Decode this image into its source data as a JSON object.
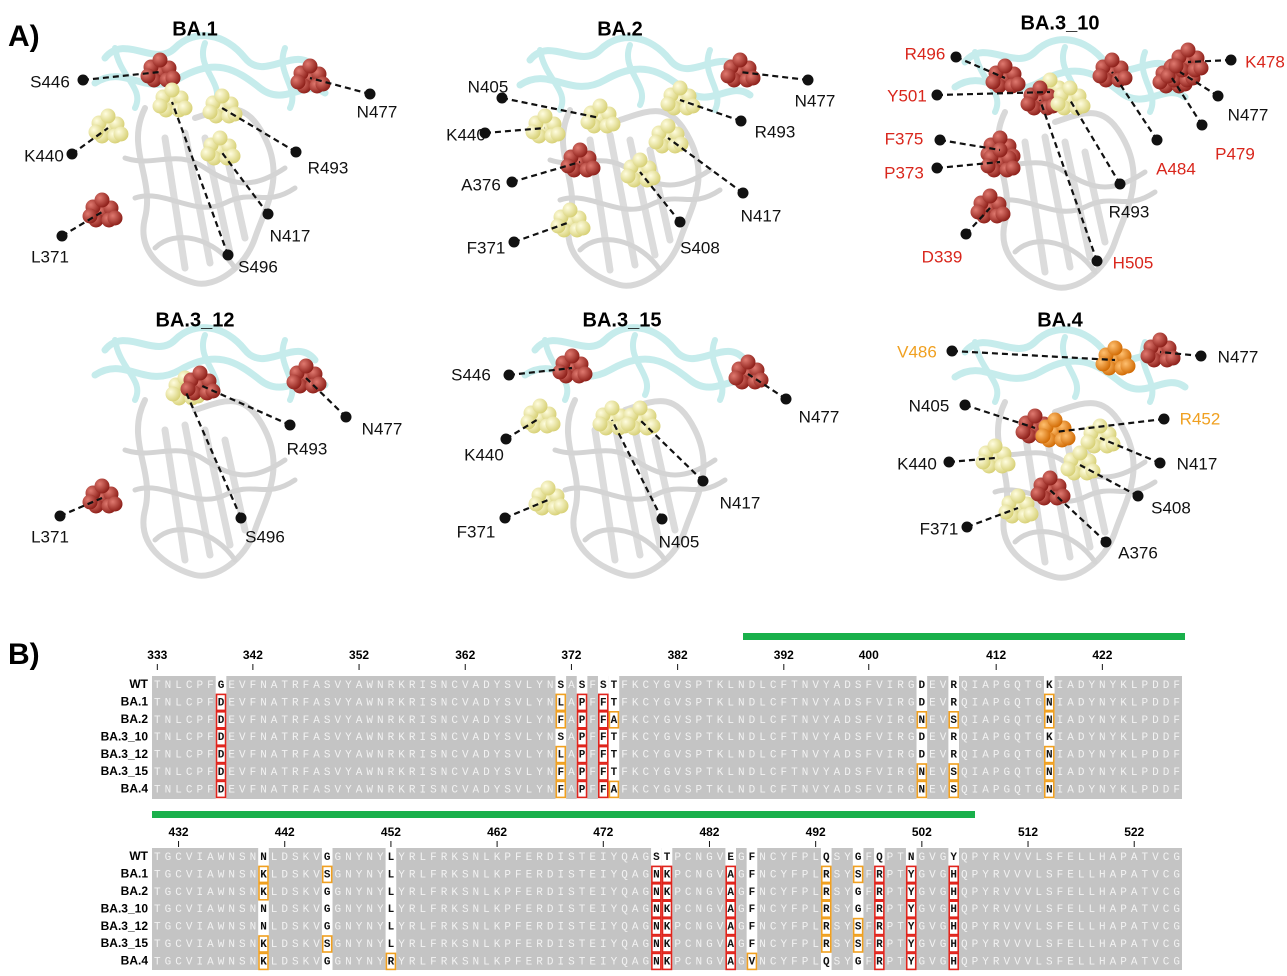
{
  "panel_labels": [
    "A)",
    "B)"
  ],
  "structures": [
    {
      "title": "BA.1",
      "labels": [
        {
          "text": "S446",
          "color": "#111111"
        },
        {
          "text": "K440",
          "color": "#111111"
        },
        {
          "text": "L371",
          "color": "#111111"
        },
        {
          "text": "S496",
          "color": "#111111"
        },
        {
          "text": "N417",
          "color": "#111111"
        },
        {
          "text": "R493",
          "color": "#111111"
        },
        {
          "text": "N477",
          "color": "#111111"
        }
      ]
    },
    {
      "title": "BA.2",
      "labels": [
        {
          "text": "N405",
          "color": "#111111"
        },
        {
          "text": "K440",
          "color": "#111111"
        },
        {
          "text": "A376",
          "color": "#111111"
        },
        {
          "text": "F371",
          "color": "#111111"
        },
        {
          "text": "S408",
          "color": "#111111"
        },
        {
          "text": "N417",
          "color": "#111111"
        },
        {
          "text": "R493",
          "color": "#111111"
        },
        {
          "text": "N477",
          "color": "#111111"
        }
      ]
    },
    {
      "title": "BA.3_10",
      "labels": [
        {
          "text": "R496",
          "color": "#d9261c"
        },
        {
          "text": "Y501",
          "color": "#d9261c"
        },
        {
          "text": "F375",
          "color": "#d9261c"
        },
        {
          "text": "P373",
          "color": "#d9261c"
        },
        {
          "text": "D339",
          "color": "#d9261c"
        },
        {
          "text": "H505",
          "color": "#d9261c"
        },
        {
          "text": "R493",
          "color": "#111111"
        },
        {
          "text": "A484",
          "color": "#d9261c"
        },
        {
          "text": "P479",
          "color": "#d9261c"
        },
        {
          "text": "N477",
          "color": "#111111"
        },
        {
          "text": "K478",
          "color": "#d9261c"
        }
      ]
    },
    {
      "title": "BA.3_12",
      "labels": [
        {
          "text": "L371",
          "color": "#111111"
        },
        {
          "text": "S496",
          "color": "#111111"
        },
        {
          "text": "R493",
          "color": "#111111"
        },
        {
          "text": "N477",
          "color": "#111111"
        }
      ]
    },
    {
      "title": "BA.3_15",
      "labels": [
        {
          "text": "S446",
          "color": "#111111"
        },
        {
          "text": "K440",
          "color": "#111111"
        },
        {
          "text": "F371",
          "color": "#111111"
        },
        {
          "text": "N405",
          "color": "#111111"
        },
        {
          "text": "N417",
          "color": "#111111"
        },
        {
          "text": "N477",
          "color": "#111111"
        }
      ]
    },
    {
      "title": "BA.4",
      "labels": [
        {
          "text": "V486",
          "color": "#f0a020"
        },
        {
          "text": "N477",
          "color": "#111111"
        },
        {
          "text": "N405",
          "color": "#111111"
        },
        {
          "text": "R452",
          "color": "#f0a020"
        },
        {
          "text": "K440",
          "color": "#111111"
        },
        {
          "text": "N417",
          "color": "#111111"
        },
        {
          "text": "F371",
          "color": "#111111"
        },
        {
          "text": "S408",
          "color": "#111111"
        },
        {
          "text": "A376",
          "color": "#111111"
        }
      ]
    }
  ],
  "alignment": {
    "blocks": [
      {
        "ticks": [
          333,
          342,
          352,
          362,
          372,
          382,
          392,
          400,
          412,
          422
        ],
        "rows": [
          {
            "name": "WT",
            "seq": "TNLCPFGEVFNATRFASVYAWNRKRISNCVADYSVLYNSASFSTFKCYGVSPTKLNDLCFTNVYADSFVIRGDEVRQIAPGQTGKIADYNYKLPDDF"
          },
          {
            "name": "BA.1",
            "seq": "TNLCPFDEVFNATRFASVYAWNRKRISNCVADYSVLYNLAPFFTFKCYGVSPTKLNDLCFTNVYADSFVIRGDEVRQIAPGQTGNIADYNYKLPDDF"
          },
          {
            "name": "BA.2",
            "seq": "TNLCPFDEVFNATRFASVYAWNRKRISNCVADYSVLYNFAPFFAFKCYGVSPTKLNDLCFTNVYADSFVIRGNEVSQIAPGQTGNIADYNYKLPDDF"
          },
          {
            "name": "BA.3_10",
            "seq": "TNLCPFDEVFNATRFASVYAWNRKRISNCVADYSVLYNSAPFFTFKCYGVSPTKLNDLCFTNVYADSFVIRGDEVRQIAPGQTGKIADYNYKLPDDF"
          },
          {
            "name": "BA.3_12",
            "seq": "TNLCPFDEVFNATRFASVYAWNRKRISNCVADYSVLYNLAPFFTFKCYGVSPTKLNDLCFTNVYADSFVIRGDEVRQIAPGQTGNIADYNYKLPDDF"
          },
          {
            "name": "BA.3_15",
            "seq": "TNLCPFDEVFNATRFASVYAWNRKRISNCVADYSVLYNFAPFFTFKCYGVSPTKLNDLCFTNVYADSFVIRGNEVSQIAPGQTGNIADYNYKLPDDF"
          },
          {
            "name": "BA.4",
            "seq": "TNLCPFDEVFNATRFASVYAWNRKRISNCVADYSVLYNFAPFFAFKCYGVSPTKLNDLCFTNVYADSFVIRGNEVSQIAPGQTGNIADYNYKLPDDF"
          }
        ]
      },
      {
        "ticks": [
          432,
          442,
          452,
          462,
          472,
          482,
          492,
          502,
          512,
          522
        ],
        "rows": [
          {
            "name": "WT",
            "seq": "TGCVIAWNSNNLDSKVGGNYNYLYRLFRKSNLKPFERDISTEIYQAGSTPCNGVEGFNCYFPLQSYGFQPTNGVGYQPYRVVVLSFELLHAPATVCG"
          },
          {
            "name": "BA.1",
            "seq": "TGCVIAWNSNKLDSKVSGNYNYLYRLFRKSNLKPFERDISTEIYQAGNKPCNGVAGFNCYFPLRSYSFRPTYGVGHQPYRVVVLSFELLHAPATVCG"
          },
          {
            "name": "BA.2",
            "seq": "TGCVIAWNSNKLDSKVGGNYNYLYRLFRKSNLKPFERDISTEIYQAGNKPCNGVAGFNCYFPLRSYGFRPTYGVGHQPYRVVVLSFELLHAPATVCG"
          },
          {
            "name": "BA.3_10",
            "seq": "TGCVIAWNSNNLDSKVGGNYNYLYRLFRKSNLKPFERDISTEIYQAGNKPCNGVAGFNCYFPLRSYGFRPTYGVGHQPYRVVVLSFELLHAPATVCG"
          },
          {
            "name": "BA.3_12",
            "seq": "TGCVIAWNSNNLDSKVGGNYNYLYRLFRKSNLKPFERDISTEIYQAGNKPCNGVAGFNCYFPLRSYSFRPTYGVGHQPYRVVVLSFELLHAPATVCG"
          },
          {
            "name": "BA.3_15",
            "seq": "TGCVIAWNSNKLDSKVSGNYNYLYRLFRKSNLKPFERDISTEIYQAGNKPCNGVAGFNCYFPLRSYSFRPTYGVGHQPYRVVVLSFELLHAPATVCG"
          },
          {
            "name": "BA.4",
            "seq": "TGCVIAWNSNKLDSKVGGNYNYRYRLFRKSNLKPFERDISTEIYQAGNKPCNGVAGVNCYFPLQSYGFRPTYGVGHQPYRVVVLSFELLHAPATVCG"
          }
        ]
      }
    ]
  }
}
